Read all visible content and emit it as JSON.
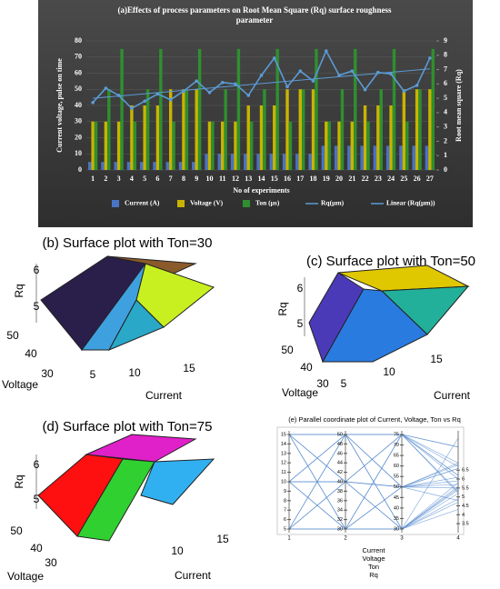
{
  "chart_data": [
    {
      "type": "combo",
      "title": [
        "(a)Effects of process parameters on Root Mean Square (Rq) surface roughness",
        "parameter"
      ],
      "ylabel": "Current voltage, pulse on time",
      "y2label": "Root mean square (Rq)",
      "xlabel": "No of experiments",
      "categories": [
        1,
        2,
        3,
        4,
        5,
        6,
        7,
        8,
        9,
        10,
        11,
        12,
        13,
        14,
        15,
        16,
        17,
        18,
        19,
        20,
        21,
        22,
        23,
        24,
        25,
        26,
        27
      ],
      "series": [
        {
          "name": "Current (A)",
          "type": "bar",
          "color": "#4a73c4",
          "values": [
            5,
            5,
            5,
            5,
            5,
            5,
            5,
            5,
            5,
            10,
            10,
            10,
            10,
            10,
            10,
            10,
            10,
            10,
            15,
            15,
            15,
            15,
            15,
            15,
            15,
            15,
            15
          ]
        },
        {
          "name": "Voltage (V)",
          "type": "bar",
          "color": "#c8b400",
          "values": [
            30,
            30,
            30,
            40,
            40,
            40,
            50,
            50,
            50,
            30,
            30,
            30,
            40,
            40,
            40,
            50,
            50,
            50,
            30,
            30,
            30,
            40,
            40,
            40,
            50,
            50,
            50
          ]
        },
        {
          "name": "Ton (µs)",
          "type": "bar",
          "color": "#2f8f2f",
          "values": [
            30,
            50,
            75,
            30,
            50,
            75,
            30,
            50,
            75,
            30,
            50,
            75,
            30,
            50,
            75,
            30,
            50,
            75,
            30,
            50,
            75,
            30,
            50,
            75,
            30,
            50,
            75
          ]
        },
        {
          "name": "Rq(µm)",
          "type": "line",
          "axis": "y2",
          "color": "#5b9bd5",
          "values": [
            4.7,
            5.7,
            5.2,
            4.3,
            4.8,
            5.3,
            4.9,
            5.5,
            6.2,
            5.4,
            6.1,
            6.0,
            5.2,
            6.6,
            7.8,
            5.8,
            6.9,
            6.2,
            8.3,
            6.6,
            6.9,
            5.6,
            6.8,
            6.7,
            5.5,
            5.9,
            7.8
          ]
        }
      ],
      "trendline": {
        "name": "Linear (Rq(µm))",
        "color": "#5b9bd5"
      },
      "ylim": [
        0,
        80
      ],
      "yticks": [
        0,
        10,
        20,
        30,
        40,
        50,
        60,
        70,
        80
      ],
      "y2lim": [
        0,
        9
      ],
      "y2ticks": [
        0,
        1,
        2,
        3,
        4,
        5,
        6,
        7,
        8,
        9
      ]
    },
    {
      "type": "surface",
      "title": "(b) Surface plot with Ton=30",
      "zlabel": "Rq",
      "ylabel": "Voltage",
      "xlabel": "Current",
      "zticks": [
        5,
        6
      ],
      "yticks": [
        50,
        40,
        30
      ],
      "xticks": [
        5,
        10,
        15
      ]
    },
    {
      "type": "surface",
      "title": "(c) Surface plot with Ton=50",
      "zlabel": "Rq",
      "ylabel": "Voltage",
      "xlabel": "Current",
      "zticks": [
        5,
        6
      ],
      "yticks": [
        50,
        40,
        30
      ],
      "xticks": [
        5,
        10,
        15
      ]
    },
    {
      "type": "surface",
      "title": "(d) Surface plot with Ton=75",
      "zlabel": "Rq",
      "ylabel": "Voltage",
      "xlabel": "Current",
      "zticks": [
        5,
        6
      ],
      "yticks": [
        50,
        40,
        30
      ],
      "xticks": [
        10,
        15
      ]
    },
    {
      "type": "parallel",
      "title": "(e) Parallel coordinate plot of Current, Voltage, Ton vs Rq",
      "dimensions": [
        "Current",
        "Voltage",
        "Ton",
        "Rq"
      ],
      "xticks": [
        1,
        2,
        3,
        4
      ],
      "axes": [
        {
          "ylim": [
            5,
            15
          ],
          "yticks": [
            5,
            6,
            7,
            8,
            9,
            10,
            11,
            12,
            13,
            14,
            15
          ]
        },
        {
          "ylim": [
            30,
            50
          ],
          "yticks": [
            30,
            32,
            34,
            36,
            38,
            40,
            42,
            44,
            46,
            48,
            50
          ]
        },
        {
          "ylim": [
            30,
            75
          ],
          "yticks": [
            30,
            35,
            40,
            45,
            50,
            55,
            60,
            65,
            70,
            75
          ]
        },
        {
          "ylim": [
            3.2,
            8.5
          ],
          "yticks": [
            3.5,
            4,
            4.5,
            5,
            5.5,
            6,
            6.5
          ]
        }
      ],
      "color": "#5b8fd0"
    }
  ]
}
